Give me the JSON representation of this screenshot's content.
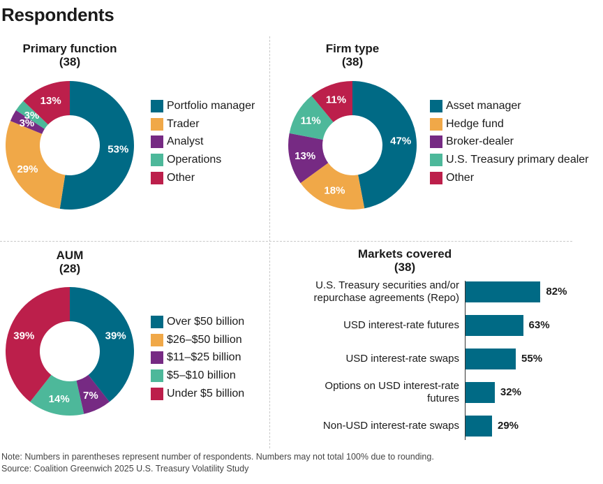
{
  "page_title": "Respondents",
  "colors": {
    "teal": "#006A85",
    "orange": "#F0A848",
    "purple": "#762A83",
    "mint": "#4DB89A",
    "crimson": "#BC1F4B"
  },
  "chart_data": [
    {
      "type": "pie",
      "title": "Primary function",
      "n": "(38)",
      "categories": [
        "Portfolio manager",
        "Trader",
        "Analyst",
        "Operations",
        "Other"
      ],
      "values": [
        53,
        29,
        3,
        3,
        13
      ],
      "labels": [
        "53%",
        "29%",
        "3%",
        "3%",
        "13%"
      ],
      "colors": [
        "#006A85",
        "#F0A848",
        "#762A83",
        "#4DB89A",
        "#BC1F4B"
      ],
      "legend": "right"
    },
    {
      "type": "pie",
      "title": "Firm type",
      "n": "(38)",
      "categories": [
        "Asset manager",
        "Hedge fund",
        "Broker-dealer",
        "U.S. Treasury primary dealer",
        "Other"
      ],
      "values": [
        47,
        18,
        13,
        11,
        11
      ],
      "labels": [
        "47%",
        "18%",
        "13%",
        "11%",
        "11%"
      ],
      "colors": [
        "#006A85",
        "#F0A848",
        "#762A83",
        "#4DB89A",
        "#BC1F4B"
      ],
      "legend": "right"
    },
    {
      "type": "pie",
      "title": "AUM",
      "n": "(28)",
      "categories": [
        "Over $50 billion",
        "$26–$50 billion",
        "$11–$25 billion",
        "$5–$10 billion",
        "Under $5 billion"
      ],
      "values": [
        39,
        0,
        7,
        14,
        39
      ],
      "labels": [
        "39%",
        "",
        "7%",
        "14%",
        "39%"
      ],
      "colors": [
        "#006A85",
        "#F0A848",
        "#762A83",
        "#4DB89A",
        "#BC1F4B"
      ],
      "legend": "right"
    },
    {
      "type": "bar",
      "orientation": "horizontal",
      "title": "Markets covered",
      "n": "(38)",
      "categories": [
        [
          "U.S. Treasury securities and/or",
          "repurchase agreements (Repo)"
        ],
        [
          "USD interest-rate futures"
        ],
        [
          "USD interest-rate swaps"
        ],
        [
          "Options on USD interest-rate",
          "futures"
        ],
        [
          "Non-USD interest-rate swaps"
        ]
      ],
      "values": [
        82,
        63,
        55,
        32,
        29
      ],
      "labels": [
        "82%",
        "63%",
        "55%",
        "32%",
        "29%"
      ],
      "color": "#006A85",
      "xlim": [
        0,
        100
      ]
    }
  ],
  "footnote": {
    "note": "Note: Numbers in parentheses represent number of respondents. Numbers may not total 100% due to rounding.",
    "source": "Source: Coalition Greenwich 2025 U.S. Treasury Volatility Study"
  }
}
